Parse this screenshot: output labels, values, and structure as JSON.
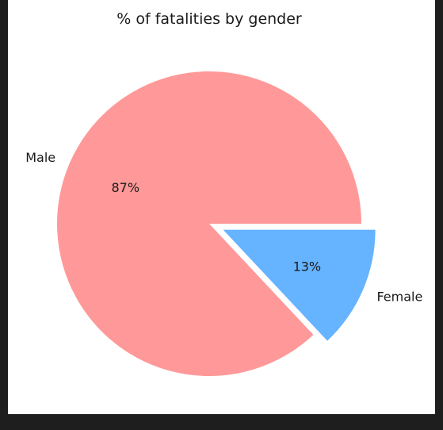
{
  "chart_data": {
    "type": "pie",
    "title": "% of fatalities by gender",
    "slices": [
      {
        "label": "Male",
        "value": 87,
        "pct_label": "87%",
        "color": "#ff9999",
        "explode": false
      },
      {
        "label": "Female",
        "value": 13,
        "pct_label": "13%",
        "color": "#66b3ff",
        "explode": true
      }
    ]
  }
}
